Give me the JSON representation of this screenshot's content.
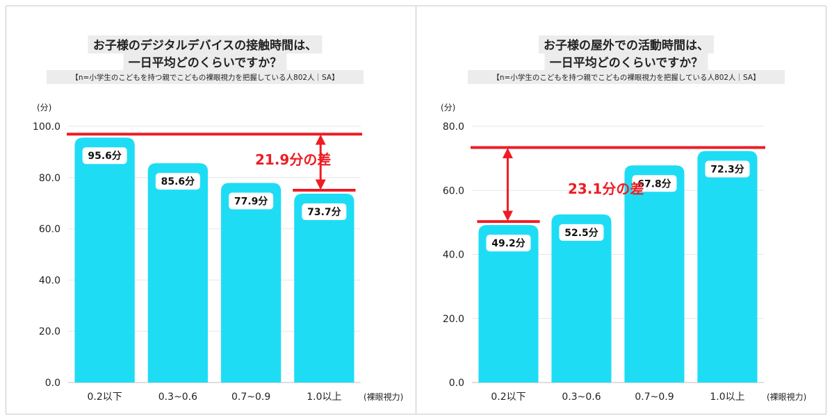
{
  "colors": {
    "bar": "#1fdcf5",
    "accent": "#ee1c24",
    "grid": "#e6e6e6",
    "title_bg": "#ececec"
  },
  "chart_data": [
    {
      "type": "bar",
      "title": [
        "お子様のデジタルデバイスの接触時間は、",
        "一日平均どのくらいですか？"
      ],
      "note": "【n=小学生のこどもを持つ親でこどもの裸眼視力を把握している人802人｜SA】",
      "ylabel": "(分)",
      "xlabel": "(裸眼視力)",
      "categories": [
        "0.2以下",
        "0.3~0.6",
        "0.7~0.9",
        "1.0以上"
      ],
      "values": [
        95.6,
        85.6,
        77.9,
        73.7
      ],
      "data_labels": [
        "95.6分",
        "85.6分",
        "77.9分",
        "73.7分"
      ],
      "ylim": [
        0,
        100
      ],
      "yticks": [
        0,
        20,
        40,
        60,
        80,
        100
      ],
      "ytick_labels": [
        "0.0",
        "20.0",
        "40.0",
        "60.0",
        "80.0",
        "100.0"
      ],
      "grid": true,
      "annotation": {
        "text": "21.9分の差",
        "from_category": 0,
        "to_category": 3,
        "from_value": 95.6,
        "to_value": 73.7
      }
    },
    {
      "type": "bar",
      "title": [
        "お子様の屋外での活動時間は、",
        "一日平均どのくらいですか？"
      ],
      "note": "【n=小学生のこどもを持つ親でこどもの裸眼視力を把握している人802人｜SA】",
      "ylabel": "(分)",
      "xlabel": "(裸眼視力)",
      "categories": [
        "0.2以下",
        "0.3~0.6",
        "0.7~0.9",
        "1.0以上"
      ],
      "values": [
        49.2,
        52.5,
        67.8,
        72.3
      ],
      "data_labels": [
        "49.2分",
        "52.5分",
        "67.8分",
        "72.3分"
      ],
      "ylim": [
        0,
        80
      ],
      "yticks": [
        0,
        20,
        40,
        60,
        80
      ],
      "ytick_labels": [
        "0.0",
        "20.0",
        "40.0",
        "60.0",
        "80.0"
      ],
      "grid": true,
      "annotation": {
        "text": "23.1分の差",
        "from_category": 3,
        "to_category": 0,
        "from_value": 72.3,
        "to_value": 49.2
      }
    }
  ]
}
